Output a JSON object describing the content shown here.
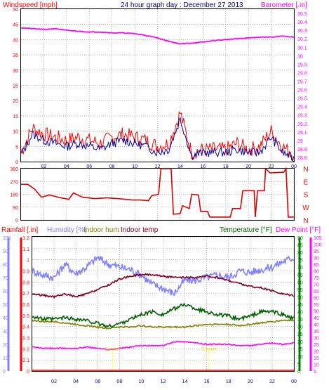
{
  "chart_data": [
    {
      "type": "line",
      "panel": "wind-baro",
      "title": "24 hour graph day : December 27 2013",
      "left_label": "Windspeed [mph]",
      "right_label": "Barometer [.in]",
      "x_ticks": [
        "02",
        "04",
        "06",
        "08",
        "10",
        "12",
        "14",
        "16",
        "18",
        "20",
        "22",
        "00"
      ],
      "left_ticks": [
        "0",
        "5",
        "10",
        "15",
        "20",
        "25",
        "30",
        "35",
        "40",
        "45",
        "50"
      ],
      "right_ticks": [
        "28.8",
        "28.9",
        "29",
        "29.1",
        "29.2",
        "29.3",
        "29.4",
        "29.5",
        "29.6",
        "29.7",
        "29.8",
        "29.9",
        "30",
        "30.1",
        "30.2",
        "30.3",
        "30.4",
        "30.5"
      ],
      "ylim_left": [
        0,
        50
      ],
      "ylim_right": [
        28.75,
        30.55
      ],
      "x": [
        0,
        1,
        2,
        3,
        4,
        5,
        6,
        7,
        8,
        9,
        10,
        11,
        12,
        13,
        14,
        15,
        16,
        17,
        18,
        19,
        20,
        21,
        22,
        23,
        24
      ],
      "series": [
        {
          "name": "gust",
          "color": "#ff0000",
          "axis": "left",
          "values": [
            3,
            11,
            9,
            8,
            7,
            8,
            7,
            6,
            8,
            9,
            8,
            7,
            5,
            6,
            16,
            3,
            4,
            4,
            4,
            6,
            4,
            5,
            10,
            5,
            2
          ]
        },
        {
          "name": "wind",
          "color": "#0000a0",
          "axis": "left",
          "values": [
            2,
            9,
            7,
            6,
            5,
            6,
            5,
            4,
            6,
            7,
            6,
            5,
            3,
            4,
            14,
            2,
            3,
            3,
            3,
            4,
            3,
            3,
            8,
            3,
            1
          ]
        },
        {
          "name": "barometer",
          "color": "#ff00ff",
          "axis": "right",
          "values": [
            30.33,
            30.32,
            30.31,
            30.32,
            30.3,
            30.29,
            30.28,
            30.28,
            30.27,
            30.27,
            30.26,
            30.24,
            30.21,
            30.17,
            30.14,
            30.15,
            30.16,
            30.18,
            30.19,
            30.2,
            30.21,
            30.22,
            30.22,
            30.23,
            30.22
          ]
        }
      ]
    },
    {
      "type": "line",
      "panel": "wind-direction",
      "left_ticks": [
        "0",
        "90",
        "180",
        "270",
        "360"
      ],
      "right_ticks": [
        "N",
        "W",
        "S",
        "E",
        "N"
      ],
      "ylim": [
        0,
        360
      ],
      "series": [
        {
          "name": "direction",
          "color": "#dd0000",
          "points": [
            [
              0,
              250
            ],
            [
              0.6,
              250
            ],
            [
              1.2,
              215
            ],
            [
              1.8,
              160
            ],
            [
              2.5,
              175
            ],
            [
              3.5,
              155
            ],
            [
              4.2,
              145
            ],
            [
              4.6,
              190
            ],
            [
              5.4,
              160
            ],
            [
              6.5,
              150
            ],
            [
              7.5,
              155
            ],
            [
              8.5,
              150
            ],
            [
              9.8,
              140
            ],
            [
              10.5,
              140
            ],
            [
              11.2,
              135
            ],
            [
              11.5,
              170
            ],
            [
              12.1,
              180
            ],
            [
              12.3,
              365
            ],
            [
              13.2,
              365
            ],
            [
              13.4,
              40
            ],
            [
              14.0,
              45
            ],
            [
              14.2,
              100
            ],
            [
              14.8,
              80
            ],
            [
              15.0,
              180
            ],
            [
              15.6,
              175
            ],
            [
              15.8,
              60
            ],
            [
              16.4,
              60
            ],
            [
              16.6,
              20
            ],
            [
              18.4,
              20
            ],
            [
              18.6,
              80
            ],
            [
              19.3,
              80
            ],
            [
              19.5,
              205
            ],
            [
              20.5,
              205
            ],
            [
              20.6,
              20
            ],
            [
              20.8,
              205
            ],
            [
              21.4,
              205
            ],
            [
              21.5,
              375
            ],
            [
              21.9,
              330
            ],
            [
              23.1,
              335
            ],
            [
              23.3,
              360
            ],
            [
              23.5,
              20
            ],
            [
              24,
              20
            ]
          ]
        }
      ]
    },
    {
      "type": "line",
      "panel": "weather",
      "legend": [
        "Rainfall [.in]",
        "Humidity [%]",
        "Indoor hum",
        "Indoor temp",
        "Temperature [°F]",
        "Dew Point [°F]"
      ],
      "humidity_ticks": [
        "0",
        "10",
        "20",
        "30",
        "40",
        "50",
        "60",
        "70",
        "80",
        "90",
        "100"
      ],
      "rain_ticks": [
        "0",
        "0.1",
        "0.2",
        "0.3",
        "0.4",
        "0.5",
        "0.6",
        "0.7",
        "0.8",
        "0.9",
        "1",
        "1.1",
        "1.2"
      ],
      "temp_ticks": [
        "0",
        "5",
        "10",
        "15",
        "20",
        "25",
        "30",
        "35",
        "40",
        "45",
        "50",
        "55",
        "60",
        "65",
        "70",
        "75",
        "80",
        "85",
        "90"
      ],
      "dew_ticks": [
        "5",
        "10",
        "15",
        "20",
        "25",
        "30",
        "35",
        "40",
        "45",
        "50",
        "55",
        "60",
        "65",
        "70",
        "75",
        "80",
        "85",
        "90",
        "95",
        "100",
        "105"
      ],
      "ylim_humidity": [
        0,
        100
      ],
      "ylim_temp": [
        0,
        90
      ],
      "ylim_dew": [
        5,
        105
      ],
      "annotations": [
        {
          "text": "Sunrise",
          "x": 7.35
        },
        {
          "text": "Sunset",
          "x": 16.2
        }
      ],
      "series": [
        {
          "name": "Rainfall [.in]",
          "color": "#ff0000",
          "axis": "rain",
          "values": [
            0,
            0,
            0,
            0,
            0,
            0,
            0,
            0,
            0,
            0,
            0,
            0,
            0,
            0,
            0,
            0,
            0,
            0,
            0,
            0,
            0,
            0,
            0,
            0,
            0
          ]
        },
        {
          "name": "Humidity [%]",
          "color": "#8080ff",
          "axis": "humidity",
          "values": [
            75,
            72,
            70,
            80,
            73,
            78,
            85,
            80,
            78,
            76,
            72,
            65,
            62,
            58,
            68,
            68,
            70,
            72,
            70,
            75,
            74,
            76,
            78,
            82,
            85
          ]
        },
        {
          "name": "Indoor hum",
          "color": "#808000",
          "axis": "humidity",
          "values": [
            38,
            37,
            37,
            36,
            35,
            34,
            33,
            32,
            33,
            33,
            34,
            33,
            33,
            33,
            33,
            34,
            35,
            35,
            35,
            34,
            35,
            36,
            37,
            38,
            38
          ]
        },
        {
          "name": "Indoor temp",
          "color": "#800020",
          "axis": "temp",
          "values": [
            52,
            51,
            50,
            52,
            50,
            52,
            55,
            58,
            62,
            64,
            65,
            65,
            64,
            63,
            63,
            63,
            64,
            63,
            61,
            59,
            57,
            56,
            54,
            52,
            51
          ]
        },
        {
          "name": "Temperature [°F]",
          "color": "#006000",
          "axis": "temp",
          "values": [
            37,
            35,
            35,
            36,
            35,
            34,
            32,
            30,
            32,
            35,
            38,
            40,
            38,
            42,
            45,
            42,
            40,
            38,
            37,
            35,
            37,
            40,
            40,
            38,
            35
          ]
        },
        {
          "name": "Dew Point [°F]",
          "color": "#ff00ff",
          "axis": "dew",
          "values": [
            23,
            22,
            22,
            22,
            22,
            23,
            22,
            21,
            22,
            23,
            24,
            24,
            24,
            27,
            27,
            26,
            25,
            25,
            25,
            24,
            24,
            25,
            26,
            25,
            26
          ]
        }
      ]
    }
  ]
}
